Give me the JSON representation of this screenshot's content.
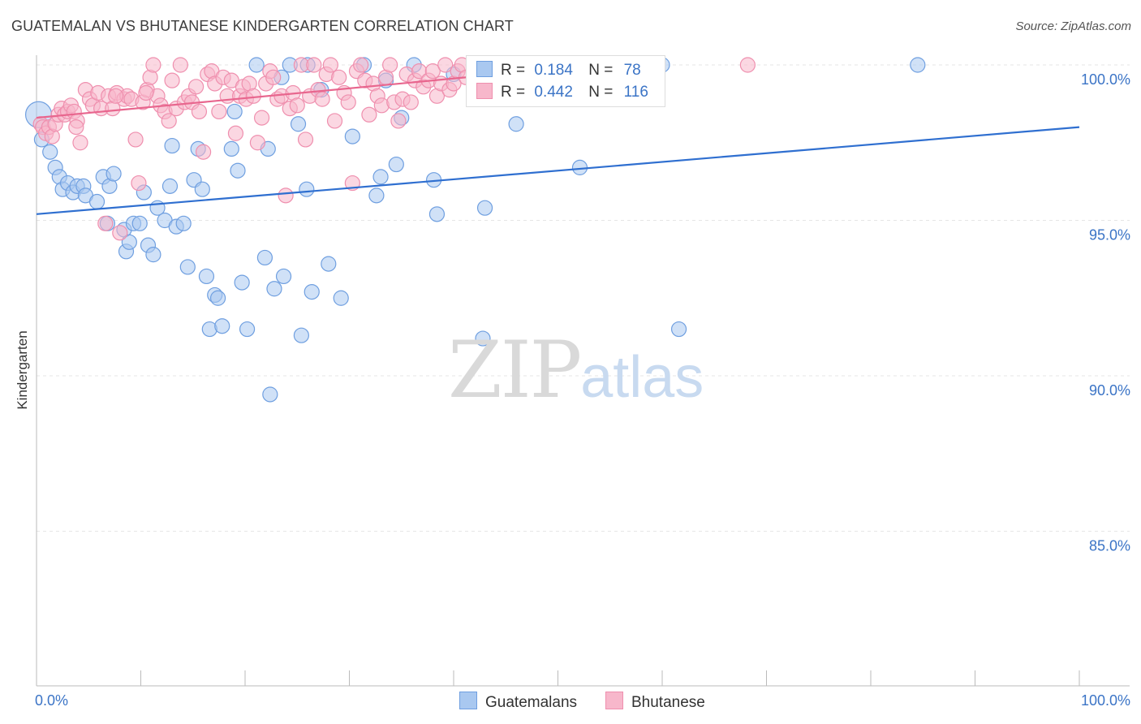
{
  "title": "GUATEMALAN VS BHUTANESE KINDERGARTEN CORRELATION CHART",
  "source": "Source: ZipAtlas.com",
  "watermark": {
    "zip": "ZIP",
    "atlas": "atlas"
  },
  "legend": {
    "r_label": "R =",
    "n_label": "N =",
    "series": [
      {
        "r": "0.184",
        "n": "78"
      },
      {
        "r": "0.442",
        "n": "116"
      }
    ]
  },
  "bottom_legend": [
    "Guatemalans",
    "Bhutanese"
  ],
  "colors": {
    "blue_fill": "#a9c8f0",
    "blue_stroke": "#6f9fe0",
    "blue_line": "#2f6fd0",
    "pink_fill": "#f7b7cb",
    "pink_stroke": "#ef8fae",
    "pink_line": "#e8668e",
    "tick_text": "#3b74c6",
    "grid": "#e6e6e6"
  },
  "chart_data": {
    "type": "scatter",
    "title": "GUATEMALAN VS BHUTANESE KINDERGARTEN CORRELATION CHART",
    "xlabel": "",
    "ylabel": "Kindergarten",
    "xlim": [
      0,
      100
    ],
    "ylim": [
      80.5,
      100.3
    ],
    "x_tick_labels": [
      "0.0%",
      "100.0%"
    ],
    "y_ticks": [
      100,
      95,
      90,
      85
    ],
    "y_tick_labels": [
      "100.0%",
      "95.0%",
      "90.0%",
      "85.0%"
    ],
    "series": [
      {
        "name": "Guatemalans",
        "r": 0.184,
        "n": 78,
        "trend": {
          "x": [
            0,
            100
          ],
          "y": [
            95.2,
            98.0
          ]
        },
        "points": [
          [
            0.2,
            98.4
          ],
          [
            0.5,
            97.6
          ],
          [
            1.3,
            97.2
          ],
          [
            1.8,
            96.7
          ],
          [
            2.2,
            96.4
          ],
          [
            2.5,
            96.0
          ],
          [
            3.0,
            96.2
          ],
          [
            3.5,
            95.9
          ],
          [
            3.9,
            96.1
          ],
          [
            4.5,
            96.1
          ],
          [
            4.7,
            95.8
          ],
          [
            5.8,
            95.6
          ],
          [
            6.4,
            96.4
          ],
          [
            7.0,
            96.1
          ],
          [
            7.4,
            96.5
          ],
          [
            6.8,
            94.9
          ],
          [
            8.4,
            94.7
          ],
          [
            8.6,
            94.0
          ],
          [
            8.9,
            94.3
          ],
          [
            9.3,
            94.9
          ],
          [
            9.9,
            94.9
          ],
          [
            10.3,
            95.9
          ],
          [
            10.7,
            94.2
          ],
          [
            11.2,
            93.9
          ],
          [
            11.6,
            95.4
          ],
          [
            12.3,
            95.0
          ],
          [
            12.8,
            96.1
          ],
          [
            13.0,
            97.4
          ],
          [
            13.4,
            94.8
          ],
          [
            14.1,
            94.9
          ],
          [
            14.5,
            93.5
          ],
          [
            15.1,
            96.3
          ],
          [
            15.5,
            97.3
          ],
          [
            15.9,
            96.0
          ],
          [
            16.3,
            93.2
          ],
          [
            16.6,
            91.5
          ],
          [
            17.1,
            92.6
          ],
          [
            17.4,
            92.5
          ],
          [
            17.8,
            91.6
          ],
          [
            18.7,
            97.3
          ],
          [
            19.0,
            98.5
          ],
          [
            19.3,
            96.6
          ],
          [
            19.7,
            93.0
          ],
          [
            20.2,
            91.5
          ],
          [
            21.1,
            100.0
          ],
          [
            21.9,
            93.8
          ],
          [
            22.2,
            97.3
          ],
          [
            22.4,
            89.4
          ],
          [
            22.8,
            92.8
          ],
          [
            23.5,
            99.6
          ],
          [
            23.7,
            93.2
          ],
          [
            24.3,
            100.0
          ],
          [
            25.1,
            98.1
          ],
          [
            25.4,
            91.3
          ],
          [
            25.9,
            96.0
          ],
          [
            26.4,
            92.7
          ],
          [
            27.3,
            99.2
          ],
          [
            28.0,
            93.6
          ],
          [
            29.2,
            92.5
          ],
          [
            30.3,
            97.7
          ],
          [
            31.4,
            100.0
          ],
          [
            32.6,
            95.8
          ],
          [
            33.0,
            96.4
          ],
          [
            34.5,
            96.8
          ],
          [
            35.0,
            98.3
          ],
          [
            36.2,
            100.0
          ],
          [
            38.1,
            96.3
          ],
          [
            38.4,
            95.2
          ],
          [
            40.0,
            99.7
          ],
          [
            42.8,
            91.2
          ],
          [
            43.0,
            95.4
          ],
          [
            46.0,
            98.1
          ],
          [
            52.1,
            96.7
          ],
          [
            60.0,
            100.0
          ],
          [
            61.6,
            91.5
          ],
          [
            84.5,
            100.0
          ],
          [
            33.5,
            99.5
          ],
          [
            26.0,
            100.0
          ]
        ]
      },
      {
        "name": "Bhutanese",
        "r": 0.442,
        "n": 116,
        "trend": {
          "x": [
            0,
            57
          ],
          "y": [
            98.3,
            100.1
          ]
        },
        "points": [
          [
            0.4,
            98.1
          ],
          [
            0.6,
            98.0
          ],
          [
            0.9,
            97.8
          ],
          [
            1.2,
            98.0
          ],
          [
            1.5,
            97.7
          ],
          [
            1.8,
            98.1
          ],
          [
            2.1,
            98.4
          ],
          [
            2.4,
            98.6
          ],
          [
            2.7,
            98.4
          ],
          [
            3.0,
            98.5
          ],
          [
            3.3,
            98.7
          ],
          [
            3.6,
            98.5
          ],
          [
            3.9,
            98.2
          ],
          [
            4.2,
            97.5
          ],
          [
            4.7,
            99.2
          ],
          [
            5.1,
            98.9
          ],
          [
            5.4,
            98.7
          ],
          [
            5.9,
            99.1
          ],
          [
            6.2,
            98.6
          ],
          [
            6.6,
            94.9
          ],
          [
            6.9,
            99.0
          ],
          [
            7.3,
            98.6
          ],
          [
            7.7,
            99.1
          ],
          [
            8.0,
            94.6
          ],
          [
            8.4,
            98.9
          ],
          [
            8.7,
            99.0
          ],
          [
            9.1,
            98.9
          ],
          [
            9.5,
            97.6
          ],
          [
            9.8,
            96.2
          ],
          [
            10.2,
            98.8
          ],
          [
            10.6,
            99.2
          ],
          [
            10.9,
            99.6
          ],
          [
            11.2,
            100.0
          ],
          [
            11.6,
            99.0
          ],
          [
            11.9,
            98.7
          ],
          [
            12.3,
            98.5
          ],
          [
            12.7,
            98.2
          ],
          [
            13.0,
            99.5
          ],
          [
            13.4,
            98.6
          ],
          [
            13.8,
            100.0
          ],
          [
            14.2,
            98.8
          ],
          [
            14.6,
            99.0
          ],
          [
            14.9,
            98.8
          ],
          [
            15.3,
            99.3
          ],
          [
            15.6,
            98.5
          ],
          [
            16.0,
            97.2
          ],
          [
            16.4,
            99.7
          ],
          [
            16.8,
            99.8
          ],
          [
            17.1,
            99.4
          ],
          [
            17.5,
            98.5
          ],
          [
            17.9,
            99.6
          ],
          [
            18.3,
            99.0
          ],
          [
            18.7,
            99.5
          ],
          [
            19.1,
            97.8
          ],
          [
            19.5,
            99.0
          ],
          [
            19.8,
            99.3
          ],
          [
            20.1,
            98.9
          ],
          [
            20.4,
            99.4
          ],
          [
            20.8,
            99.0
          ],
          [
            21.2,
            97.5
          ],
          [
            21.6,
            98.3
          ],
          [
            22.0,
            99.4
          ],
          [
            22.4,
            99.8
          ],
          [
            22.7,
            99.6
          ],
          [
            23.1,
            98.9
          ],
          [
            23.5,
            99.0
          ],
          [
            23.9,
            95.8
          ],
          [
            24.3,
            98.6
          ],
          [
            24.6,
            99.1
          ],
          [
            25.0,
            98.7
          ],
          [
            25.4,
            100.0
          ],
          [
            25.8,
            97.6
          ],
          [
            26.2,
            99.0
          ],
          [
            26.6,
            100.0
          ],
          [
            27.0,
            99.2
          ],
          [
            27.4,
            98.9
          ],
          [
            27.8,
            99.7
          ],
          [
            28.2,
            100.0
          ],
          [
            28.6,
            98.2
          ],
          [
            29.0,
            99.6
          ],
          [
            29.5,
            99.1
          ],
          [
            29.9,
            98.8
          ],
          [
            30.3,
            96.2
          ],
          [
            30.7,
            99.8
          ],
          [
            31.1,
            100.0
          ],
          [
            31.5,
            99.5
          ],
          [
            31.9,
            98.4
          ],
          [
            32.3,
            99.4
          ],
          [
            32.7,
            99.0
          ],
          [
            33.1,
            98.7
          ],
          [
            33.5,
            99.6
          ],
          [
            33.9,
            100.0
          ],
          [
            34.3,
            98.8
          ],
          [
            34.7,
            98.2
          ],
          [
            35.1,
            98.9
          ],
          [
            35.5,
            99.7
          ],
          [
            35.9,
            98.8
          ],
          [
            36.3,
            99.5
          ],
          [
            36.7,
            99.8
          ],
          [
            37.1,
            99.3
          ],
          [
            37.6,
            99.5
          ],
          [
            38.0,
            99.8
          ],
          [
            38.4,
            99.0
          ],
          [
            38.8,
            99.4
          ],
          [
            39.2,
            100.0
          ],
          [
            39.6,
            99.2
          ],
          [
            40.0,
            99.4
          ],
          [
            40.4,
            99.8
          ],
          [
            40.8,
            100.0
          ],
          [
            41.2,
            99.6
          ],
          [
            42.0,
            99.9
          ],
          [
            43.0,
            100.0
          ],
          [
            7.6,
            99.0
          ],
          [
            10.5,
            99.1
          ],
          [
            3.8,
            98.0
          ],
          [
            68.2,
            100.0
          ]
        ]
      }
    ]
  }
}
